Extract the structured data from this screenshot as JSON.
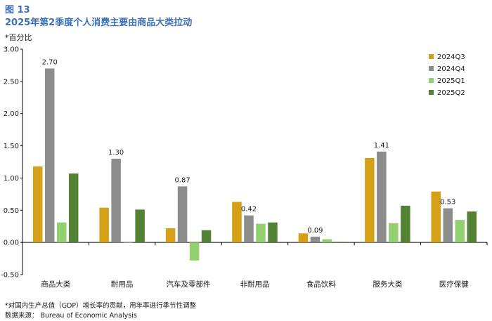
{
  "header": {
    "figure_label": "图 13",
    "title": "2025年第2季度个人消费主要由商品大类拉动",
    "unit": "*百分比"
  },
  "footer": {
    "footnote": "*对国内生产总值（GDP）增长率的贡献，用年率进行季节性调整",
    "source": "数据来源：  Bureau of Economic Analysis"
  },
  "chart_data": {
    "type": "bar",
    "title": "2025年第2季度个人消费主要由商品大类拉动",
    "xlabel": "",
    "ylabel": "*百分比",
    "ylim": [
      -0.5,
      3.0
    ],
    "yticks": [
      "3.00",
      "2.50",
      "2.00",
      "1.50",
      "1.00",
      "0.50",
      "0.00",
      "-0.50"
    ],
    "ytick_values": [
      3.0,
      2.5,
      2.0,
      1.5,
      1.0,
      0.5,
      0.0,
      -0.5
    ],
    "grid": false,
    "legend_position": "top-right",
    "categories": [
      "商品大类",
      "耐用品",
      "汽车及零部件",
      "非耐用品",
      "食品饮料",
      "服务大类",
      "医疗保健"
    ],
    "series": [
      {
        "name": "2024Q3",
        "color": "#d4a017",
        "values": [
          1.18,
          0.54,
          0.22,
          0.63,
          0.14,
          1.31,
          0.79
        ]
      },
      {
        "name": "2024Q4",
        "color": "#8c8c8c",
        "values": [
          2.7,
          1.3,
          0.87,
          0.42,
          0.09,
          1.41,
          0.53
        ]
      },
      {
        "name": "2025Q1",
        "color": "#92d070",
        "values": [
          0.31,
          0.0,
          -0.28,
          0.29,
          0.05,
          0.3,
          0.35
        ]
      },
      {
        "name": "2025Q2",
        "color": "#548235",
        "values": [
          1.07,
          0.51,
          0.19,
          0.31,
          0.01,
          0.57,
          0.48
        ]
      }
    ],
    "data_labels": [
      {
        "series": "2024Q4",
        "category": "商品大类",
        "text": "2.70"
      },
      {
        "series": "2024Q4",
        "category": "耐用品",
        "text": "1.30"
      },
      {
        "series": "2024Q4",
        "category": "汽车及零部件",
        "text": "0.87"
      },
      {
        "series": "2024Q4",
        "category": "非耐用品",
        "text": "0.42"
      },
      {
        "series": "2024Q4",
        "category": "食品饮料",
        "text": "0.09"
      },
      {
        "series": "2024Q4",
        "category": "服务大类",
        "text": "1.41"
      },
      {
        "series": "2024Q4",
        "category": "医疗保健",
        "text": "0.53"
      }
    ]
  }
}
